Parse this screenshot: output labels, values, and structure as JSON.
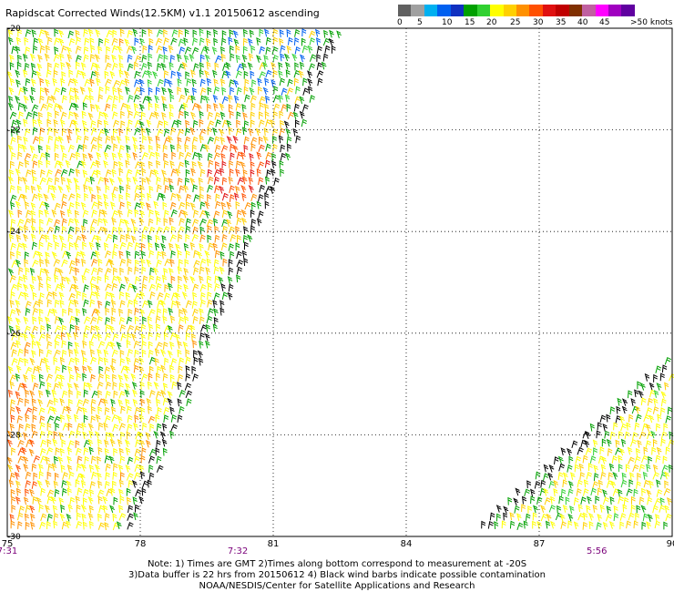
{
  "title": "Rapidscat Corrected Winds(12.5KM) v1.1 20150612 ascending",
  "legend": {
    "colors": [
      "#606060",
      "#a0a0a0",
      "#00b0f0",
      "#0060f0",
      "#1030c0",
      "#00a000",
      "#30d030",
      "#ffff00",
      "#ffd000",
      "#ff9000",
      "#ff5000",
      "#e01010",
      "#c00000",
      "#803000",
      "#c060a0",
      "#ff00ff",
      "#a000c0",
      "#6000a0"
    ],
    "labels": [
      "0",
      "5",
      "10",
      "15",
      "20",
      "25",
      "30",
      "35",
      "40",
      "45",
      ">50 knots"
    ]
  },
  "map": {
    "lon_range": [
      75,
      90
    ],
    "lat_range": [
      -30,
      -20
    ],
    "lon_ticks": [
      "75",
      "78",
      "81",
      "84",
      "87",
      "90"
    ],
    "lat_ticks": [
      "-20",
      "-22",
      "-24",
      "-26",
      "-28",
      "-30"
    ],
    "grid": "dotted",
    "swaths": [
      {
        "name": "west-swath",
        "edge_from": [
          82.6,
          -20
        ],
        "edge_to": [
          77.8,
          -30
        ]
      },
      {
        "name": "east-swath",
        "edge_from": [
          90,
          -26.5
        ],
        "edge_to": [
          85.5,
          -30
        ]
      }
    ],
    "contaminated_barb_color": "#000000"
  },
  "times": [
    {
      "lon": 75,
      "label": "7:31"
    },
    {
      "lon": 80.2,
      "label": "7:32"
    },
    {
      "lon": 88.3,
      "label": "5:56"
    }
  ],
  "notes": [
    "Note: 1) Times are GMT 2)Times along bottom correspond to measurement at -20S",
    "3)Data buffer is 22 hrs from 20150612 4) Black wind barbs indicate possible contamination",
    "NOAA/NESDIS/Center for Satellite Applications and Research"
  ]
}
